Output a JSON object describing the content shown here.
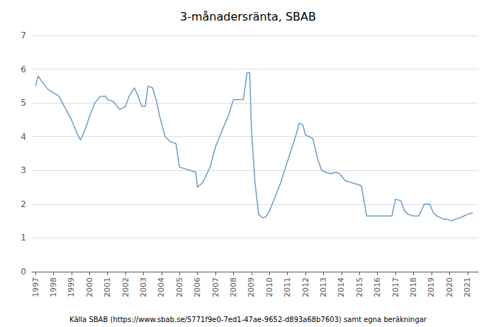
{
  "chart_data": {
    "type": "line",
    "title": "3-månadersränta, SBAB",
    "source": "Källa SBAB (https://www.sbab.se/5771f9e0-7ed1-47ae-9652-d893a68b7603) samt egna beräkningar",
    "color": "#6b9dc8",
    "x": [
      1997.0,
      1997.15,
      1997.4,
      1997.7,
      1998.0,
      1998.3,
      1998.6,
      1999.0,
      1999.3,
      1999.5,
      1999.75,
      2000.0,
      2000.3,
      2000.6,
      2000.9,
      2001.0,
      2001.3,
      2001.7,
      2002.0,
      2002.2,
      2002.5,
      2002.7,
      2002.9,
      2003.1,
      2003.25,
      2003.5,
      2003.7,
      2003.9,
      2004.2,
      2004.5,
      2004.8,
      2005.0,
      2005.3,
      2005.6,
      2005.9,
      2006.0,
      2006.3,
      2006.7,
      2007.0,
      2007.3,
      2007.7,
      2008.0,
      2008.3,
      2008.55,
      2008.75,
      2008.9,
      2009.0,
      2009.2,
      2009.4,
      2009.6,
      2009.8,
      2010.0,
      2010.3,
      2010.6,
      2010.9,
      2011.2,
      2011.5,
      2011.65,
      2011.85,
      2012.0,
      2012.2,
      2012.4,
      2012.7,
      2012.9,
      2013.1,
      2013.4,
      2013.7,
      2013.9,
      2014.2,
      2014.5,
      2014.8,
      2015.1,
      2015.4,
      2015.7,
      2015.9,
      2016.2,
      2016.5,
      2016.8,
      2017.0,
      2017.3,
      2017.5,
      2017.7,
      2018.0,
      2018.3,
      2018.6,
      2018.9,
      2019.1,
      2019.3,
      2019.5,
      2019.7,
      2019.9,
      2020.1,
      2020.3,
      2020.6,
      2020.8,
      2021.0,
      2021.3
    ],
    "values": [
      5.5,
      5.8,
      5.6,
      5.4,
      5.3,
      5.2,
      4.9,
      4.5,
      4.1,
      3.9,
      4.2,
      4.6,
      5.0,
      5.2,
      5.2,
      5.1,
      5.05,
      4.8,
      4.9,
      5.2,
      5.45,
      5.2,
      4.9,
      4.9,
      5.5,
      5.45,
      5.1,
      4.6,
      4.0,
      3.85,
      3.8,
      3.1,
      3.05,
      3.0,
      2.95,
      2.5,
      2.65,
      3.1,
      3.7,
      4.1,
      4.6,
      5.1,
      5.1,
      5.1,
      5.9,
      5.9,
      4.2,
      2.6,
      1.7,
      1.6,
      1.62,
      1.8,
      2.2,
      2.6,
      3.1,
      3.6,
      4.1,
      4.4,
      4.35,
      4.05,
      4.0,
      3.95,
      3.3,
      3.0,
      2.95,
      2.9,
      2.95,
      2.9,
      2.7,
      2.65,
      2.6,
      2.55,
      1.65,
      1.65,
      1.65,
      1.65,
      1.65,
      1.65,
      2.15,
      2.1,
      1.8,
      1.7,
      1.65,
      1.65,
      2.0,
      2.0,
      1.75,
      1.65,
      1.6,
      1.55,
      1.55,
      1.5,
      1.55,
      1.6,
      1.65,
      1.7,
      1.75
    ],
    "xlim": [
      1996.8,
      2021.6
    ],
    "xticks": [
      1997,
      1998,
      1999,
      2000,
      2001,
      2002,
      2003,
      2004,
      2005,
      2006,
      2007,
      2008,
      2009,
      2010,
      2011,
      2012,
      2013,
      2014,
      2015,
      2016,
      2017,
      2018,
      2019,
      2020,
      2021
    ],
    "ylim": [
      0,
      7
    ],
    "yticks": [
      0,
      1,
      2,
      3,
      4,
      5,
      6,
      7
    ],
    "grid": true
  }
}
